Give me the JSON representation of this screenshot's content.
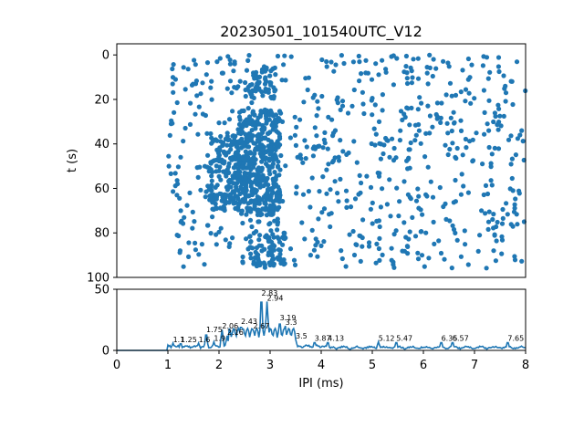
{
  "chart_data": [
    {
      "type": "scatter",
      "title": "20230501_101540UTC_V12",
      "xlabel": "",
      "ylabel": "t (s)",
      "xlim": [
        0,
        8
      ],
      "ylim": [
        100,
        -5
      ],
      "y_inverted": true,
      "xticks": [],
      "yticks": [
        0,
        20,
        40,
        60,
        80,
        100
      ],
      "ytick_labels": [
        "0",
        "20",
        "40",
        "60",
        "80",
        "100"
      ],
      "marker_color": "#1f77b4",
      "regions": [
        {
          "x": [
            1.0,
            8.0
          ],
          "t": [
            0,
            96
          ],
          "density": 0.35,
          "count": 700
        },
        {
          "x": [
            2.4,
            3.2
          ],
          "t": [
            25,
            72
          ],
          "density": 1.0,
          "count": 420
        },
        {
          "x": [
            1.8,
            2.4
          ],
          "t": [
            35,
            70
          ],
          "density": 0.6,
          "count": 160
        },
        {
          "x": [
            2.5,
            3.1
          ],
          "t": [
            5,
            20
          ],
          "density": 0.5,
          "count": 60
        },
        {
          "x": [
            2.6,
            3.3
          ],
          "t": [
            80,
            95
          ],
          "density": 0.6,
          "count": 80
        }
      ]
    },
    {
      "type": "line",
      "xlabel": "IPI (ms)",
      "ylabel": "",
      "xlim": [
        0,
        8
      ],
      "ylim": [
        0,
        50
      ],
      "xticks": [
        0,
        1,
        2,
        3,
        4,
        5,
        6,
        7,
        8
      ],
      "xtick_labels": [
        "0",
        "1",
        "2",
        "3",
        "4",
        "5",
        "6",
        "7",
        "8"
      ],
      "yticks": [
        0,
        50
      ],
      "ytick_labels": [
        "0",
        "50"
      ],
      "line_color": "#1f77b4",
      "peaks": [
        {
          "x": 1.1,
          "y": 6,
          "label": "1.1"
        },
        {
          "x": 1.25,
          "y": 6,
          "label": "1.25"
        },
        {
          "x": 1.6,
          "y": 6,
          "label": "1.6"
        },
        {
          "x": 1.75,
          "y": 14,
          "label": "1.75"
        },
        {
          "x": 1.9,
          "y": 7,
          "label": "1.9"
        },
        {
          "x": 2.06,
          "y": 17,
          "label": "2.06"
        },
        {
          "x": 2.16,
          "y": 12,
          "label": "2.16"
        },
        {
          "x": 2.43,
          "y": 21,
          "label": "2.43"
        },
        {
          "x": 2.67,
          "y": 17,
          "label": "2.67"
        },
        {
          "x": 2.83,
          "y": 44,
          "label": "2.83"
        },
        {
          "x": 2.94,
          "y": 40,
          "label": "2.94"
        },
        {
          "x": 3.19,
          "y": 24,
          "label": "3.19"
        },
        {
          "x": 3.3,
          "y": 20,
          "label": "3.3"
        },
        {
          "x": 3.5,
          "y": 9,
          "label": "3.5"
        },
        {
          "x": 3.87,
          "y": 7,
          "label": "3.87"
        },
        {
          "x": 4.13,
          "y": 7,
          "label": "4.13"
        },
        {
          "x": 5.12,
          "y": 7,
          "label": "5.12"
        },
        {
          "x": 5.47,
          "y": 7,
          "label": "5.47"
        },
        {
          "x": 6.35,
          "y": 7,
          "label": "6.35"
        },
        {
          "x": 6.57,
          "y": 7,
          "label": "6.57"
        },
        {
          "x": 7.65,
          "y": 7,
          "label": "7.65"
        }
      ]
    }
  ]
}
